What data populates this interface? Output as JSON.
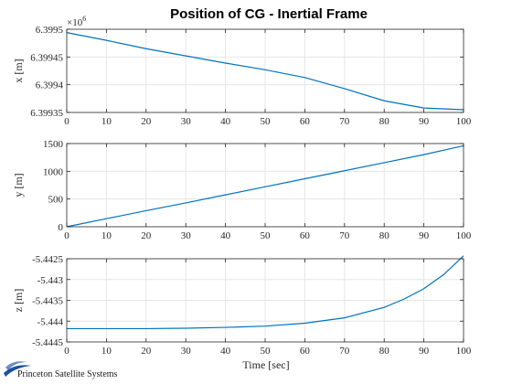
{
  "chart_data": [
    {
      "type": "line",
      "title": "Position of CG - Inertial Frame",
      "xlabel": "",
      "ylabel": "x [m]",
      "exponent_label": "×10",
      "exponent_power": "6",
      "xlim": [
        0,
        100
      ],
      "ylim": [
        6.39935,
        6.3995
      ],
      "xticks": [
        "0",
        "10",
        "20",
        "30",
        "40",
        "50",
        "60",
        "70",
        "80",
        "90",
        "100"
      ],
      "yticks": [
        "6.39935",
        "6.3994",
        "6.39945",
        "6.3995"
      ],
      "ytick_values": [
        6.39935,
        6.3994,
        6.39945,
        6.3995
      ],
      "grid": true,
      "series": [
        {
          "color": "#0072bd",
          "x": [
            0,
            10,
            20,
            30,
            40,
            50,
            60,
            70,
            80,
            90,
            100
          ],
          "y": [
            6.399494,
            6.39948,
            6.399465,
            6.399452,
            6.399439,
            6.399427,
            6.399413,
            6.399393,
            6.399371,
            6.399358,
            6.399355
          ]
        }
      ]
    },
    {
      "type": "line",
      "title": "",
      "xlabel": "",
      "ylabel": "y [m]",
      "xlim": [
        0,
        100
      ],
      "ylim": [
        0,
        1500
      ],
      "xticks": [
        "0",
        "10",
        "20",
        "30",
        "40",
        "50",
        "60",
        "70",
        "80",
        "90",
        "100"
      ],
      "yticks": [
        "0",
        "500",
        "1000",
        "1500"
      ],
      "ytick_values": [
        0,
        500,
        1000,
        1500
      ],
      "grid": true,
      "series": [
        {
          "color": "#0072bd",
          "x": [
            0,
            10,
            20,
            30,
            40,
            50,
            60,
            70,
            80,
            90,
            100
          ],
          "y": [
            0,
            145,
            290,
            430,
            575,
            720,
            865,
            1010,
            1155,
            1300,
            1460
          ]
        }
      ]
    },
    {
      "type": "line",
      "title": "",
      "xlabel": "Time [sec]",
      "ylabel": "z [m]",
      "xlim": [
        0,
        100
      ],
      "ylim": [
        -5.4445,
        -5.4425
      ],
      "xticks": [
        "0",
        "10",
        "20",
        "30",
        "40",
        "50",
        "60",
        "70",
        "80",
        "90",
        "100"
      ],
      "yticks": [
        "-5.4445",
        "-5.444",
        "-5.4435",
        "-5.443",
        "-5.4425"
      ],
      "ytick_values": [
        -5.4445,
        -5.444,
        -5.4435,
        -5.443,
        -5.4425
      ],
      "grid": true,
      "series": [
        {
          "color": "#0072bd",
          "x": [
            0,
            10,
            20,
            30,
            40,
            50,
            60,
            70,
            80,
            85,
            90,
            95,
            100
          ],
          "y": [
            -5.44418,
            -5.44418,
            -5.44418,
            -5.44417,
            -5.44415,
            -5.44412,
            -5.44405,
            -5.44392,
            -5.44367,
            -5.44347,
            -5.44322,
            -5.44288,
            -5.44243
          ]
        }
      ]
    }
  ],
  "logo": {
    "text": "Princeton Satellite Systems",
    "colors": [
      "#1f4e9c",
      "#6c8fc7"
    ]
  }
}
